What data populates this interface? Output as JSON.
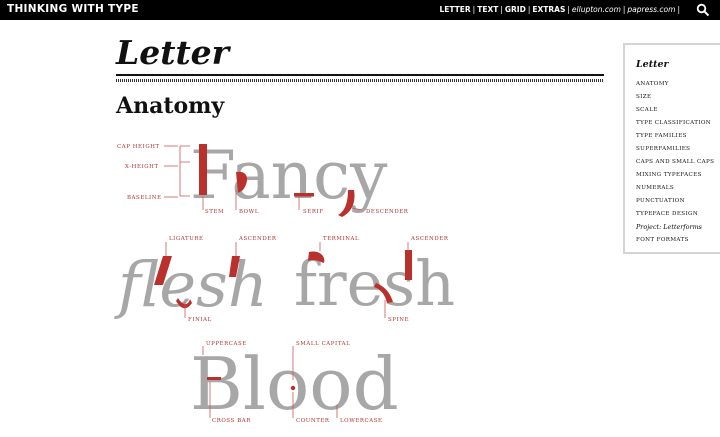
{
  "header": {
    "site_title": "THINKING WITH TYPE",
    "nav": {
      "letter": "LETTER",
      "text": "TEXT",
      "grid": "GRID",
      "extras": "EXTRAS",
      "site1": "ellupton.com",
      "site2": "papress.com",
      "sep": "|"
    },
    "search_icon": "search-icon"
  },
  "page": {
    "title": "Letter",
    "section_title": "Anatomy"
  },
  "sidebar": {
    "heading": "Letter",
    "items": [
      "ANATOMY",
      "SIZE",
      "SCALE",
      "TYPE CLASSIFICATION",
      "TYPE FAMILIES",
      "SUPERFAMILIES",
      "CAPS AND SMALL CAPS",
      "MIXING TYPEFACES",
      "NUMERALS",
      "PUNCTUATION",
      "TYPEFACE DESIGN",
      "Project: Letterforms",
      "FONT FORMATS"
    ]
  },
  "diagram": {
    "words": {
      "fancy": "Fancy",
      "flesh": "flesh",
      "fresh": "fresh",
      "blood": "Blood"
    },
    "labels": {
      "cap_height": "CAP HEIGHT",
      "x_height": "X-HEIGHT",
      "baseline": "BASELINE",
      "stem": "STEM",
      "bowl": "BOWL",
      "serif": "SERIF",
      "descender": "DESCENDER",
      "ligature": "LIGATURE",
      "ascender1": "ASCENDER",
      "terminal": "TERMINAL",
      "ascender2": "ASCENDER",
      "finial": "FINIAL",
      "spine": "SPINE",
      "uppercase": "UPPERCASE",
      "small_capital": "SMALL CAPITAL",
      "cross_bar": "CROSS BAR",
      "counter": "COUNTER",
      "lowercase": "LOWERCASE"
    },
    "colors": {
      "accent": "#b9302d",
      "glyph": "#a7a7a7"
    }
  }
}
